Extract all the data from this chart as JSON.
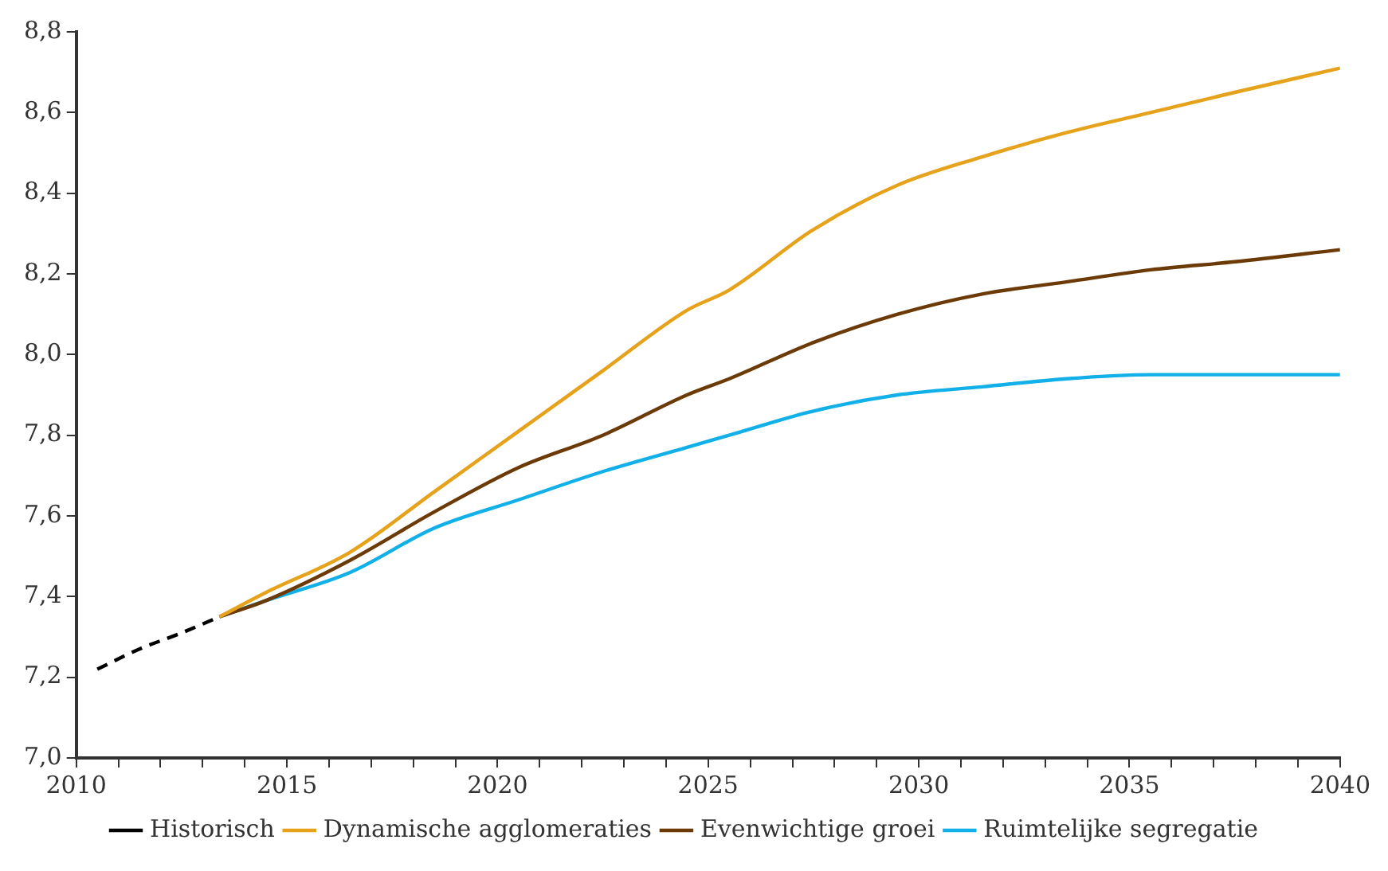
{
  "chart_data": {
    "type": "line",
    "xlim": [
      2010,
      2040
    ],
    "ylim": [
      7.0,
      8.8
    ],
    "xticks": [
      2010,
      {
        "value": 2011,
        "label": null
      },
      {
        "value": 2012,
        "label": null
      },
      {
        "value": 2013,
        "label": null
      },
      {
        "value": 2014,
        "label": null
      },
      2015,
      {
        "value": 2016,
        "label": null
      },
      {
        "value": 2017,
        "label": null
      },
      {
        "value": 2018,
        "label": null
      },
      {
        "value": 2019,
        "label": null
      },
      2020,
      {
        "value": 2021,
        "label": null
      },
      {
        "value": 2022,
        "label": null
      },
      {
        "value": 2023,
        "label": null
      },
      {
        "value": 2024,
        "label": null
      },
      2025,
      {
        "value": 2026,
        "label": null
      },
      {
        "value": 2027,
        "label": null
      },
      {
        "value": 2028,
        "label": null
      },
      {
        "value": 2029,
        "label": null
      },
      2030,
      {
        "value": 2031,
        "label": null
      },
      {
        "value": 2032,
        "label": null
      },
      {
        "value": 2033,
        "label": null
      },
      {
        "value": 2034,
        "label": null
      },
      2035,
      {
        "value": 2036,
        "label": null
      },
      {
        "value": 2037,
        "label": null
      },
      {
        "value": 2038,
        "label": null
      },
      {
        "value": 2039,
        "label": null
      },
      2040
    ],
    "yticks": [
      {
        "value": 7.0,
        "label": "7,0"
      },
      {
        "value": 7.2,
        "label": "7,2"
      },
      {
        "value": 7.4,
        "label": "7,4"
      },
      {
        "value": 7.6,
        "label": "7,6"
      },
      {
        "value": 7.8,
        "label": "7,8"
      },
      {
        "value": 8.0,
        "label": "8,0"
      },
      {
        "value": 8.2,
        "label": "8,2"
      },
      {
        "value": 8.4,
        "label": "8,4"
      },
      {
        "value": 8.6,
        "label": "8,6"
      },
      {
        "value": 8.8,
        "label": "8,8"
      }
    ],
    "grid": false,
    "legend": "bottom",
    "marker": "none",
    "series": [
      {
        "name": "Historisch",
        "color": "#000000",
        "line_style": "dashed",
        "x": [
          2010.5,
          2011.5,
          2012.5,
          2013.4
        ],
        "values": [
          7.22,
          7.27,
          7.31,
          7.35
        ]
      },
      {
        "name": "Dynamische agglomeraties",
        "color": "#e6a21a",
        "line_style": "solid",
        "x": [
          2013.4,
          2014.5,
          2016.5,
          2018.5,
          2020.5,
          2022.5,
          2024.5,
          2025.5,
          2027.5,
          2029.5,
          2031.5,
          2033.5,
          2035.5,
          2037.5,
          2040
        ],
        "values": [
          7.35,
          7.41,
          7.51,
          7.66,
          7.81,
          7.96,
          8.11,
          8.16,
          8.31,
          8.42,
          8.49,
          8.55,
          8.6,
          8.65,
          8.71
        ]
      },
      {
        "name": "Evenwichtige groei",
        "color": "#6b3a07",
        "line_style": "solid",
        "x": [
          2013.4,
          2014.5,
          2016.5,
          2018.5,
          2020.5,
          2022.5,
          2024.5,
          2025.5,
          2027.5,
          2029.5,
          2031.5,
          2033.5,
          2035.5,
          2037.5,
          2040
        ],
        "values": [
          7.35,
          7.39,
          7.49,
          7.61,
          7.72,
          7.8,
          7.9,
          7.94,
          8.03,
          8.1,
          8.15,
          8.18,
          8.21,
          8.23,
          8.26
        ]
      },
      {
        "name": "Ruimtelijke segregatie",
        "color": "#12b0e8",
        "line_style": "solid",
        "x": [
          2013.4,
          2014.5,
          2016.5,
          2018.5,
          2020.5,
          2022.5,
          2024.5,
          2025.5,
          2027.5,
          2029.5,
          2031.5,
          2033.5,
          2035.5,
          2037.5,
          2040
        ],
        "values": [
          7.35,
          7.39,
          7.46,
          7.57,
          7.64,
          7.71,
          7.77,
          7.8,
          7.86,
          7.9,
          7.92,
          7.94,
          7.95,
          7.95,
          7.95
        ]
      }
    ]
  }
}
